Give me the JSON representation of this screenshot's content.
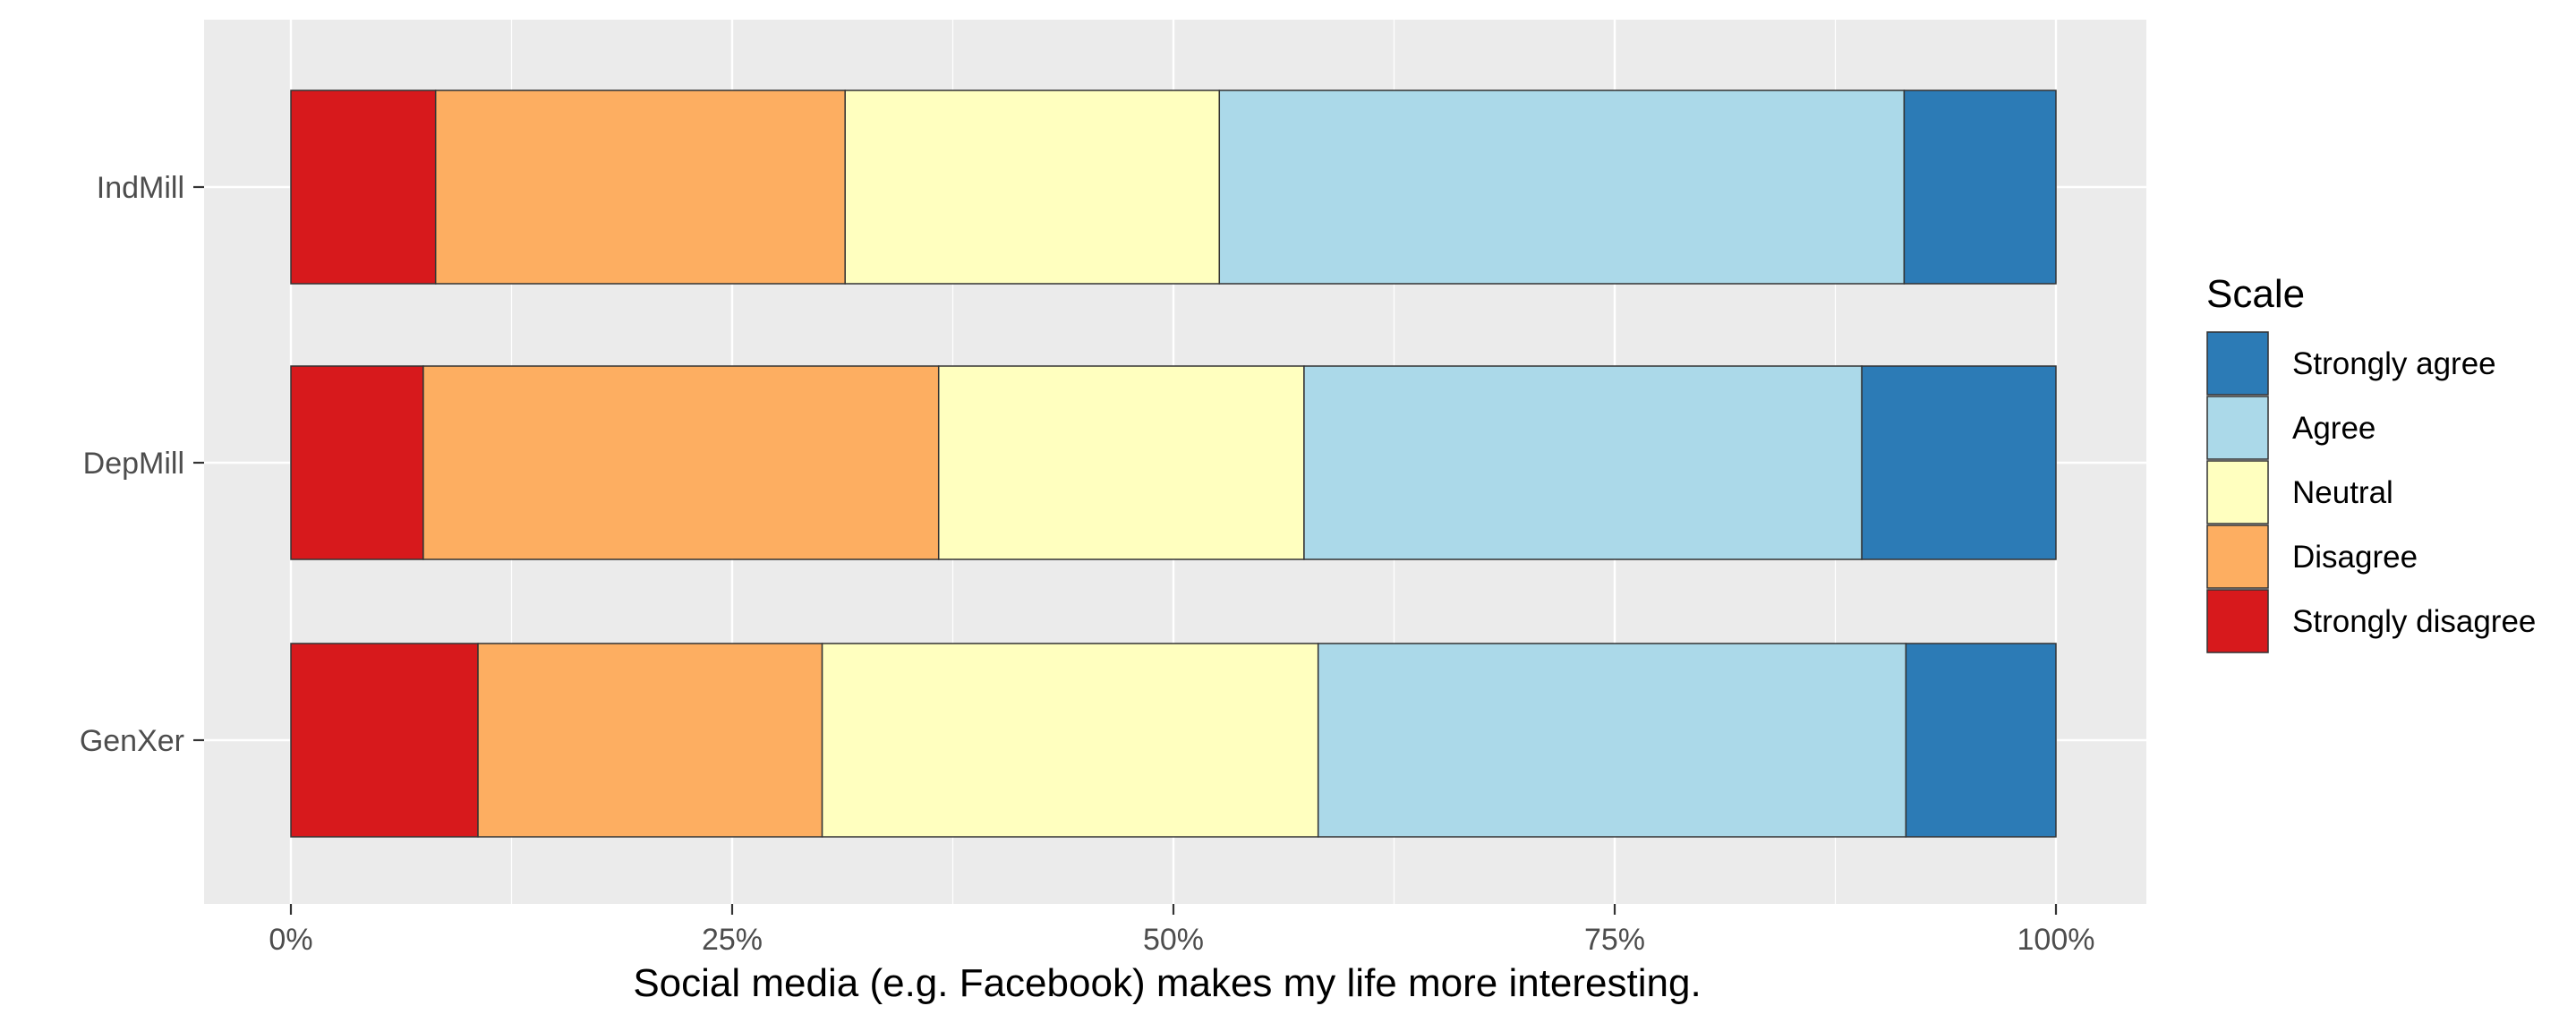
{
  "chart_data": {
    "type": "bar",
    "orientation": "horizontal",
    "stacked": true,
    "normalized": true,
    "title": "",
    "xlabel": "Social media (e.g. Facebook) makes my life more interesting.",
    "ylabel": "",
    "xlim": [
      0,
      100
    ],
    "x_ticks": [
      "0%",
      "25%",
      "50%",
      "75%",
      "100%"
    ],
    "categories": [
      "IndMill",
      "DepMill",
      "GenXer"
    ],
    "series": [
      {
        "name": "Strongly disagree",
        "color": "#d7191c",
        "values": [
          8.2,
          7.5,
          10.6
        ]
      },
      {
        "name": "Disagree",
        "color": "#fdae61",
        "values": [
          23.2,
          29.2,
          19.5
        ]
      },
      {
        "name": "Neutral",
        "color": "#ffffbf",
        "values": [
          21.2,
          20.7,
          28.1
        ]
      },
      {
        "name": "Agree",
        "color": "#abd9e9",
        "values": [
          38.8,
          31.6,
          33.3
        ]
      },
      {
        "name": "Strongly agree",
        "color": "#2c7bb6",
        "values": [
          8.6,
          11.0,
          8.5
        ]
      }
    ],
    "legend": {
      "title": "Scale",
      "position": "right",
      "order": [
        "Strongly agree",
        "Agree",
        "Neutral",
        "Disagree",
        "Strongly disagree"
      ]
    },
    "grid": true,
    "panel_background": "#ebebeb"
  }
}
